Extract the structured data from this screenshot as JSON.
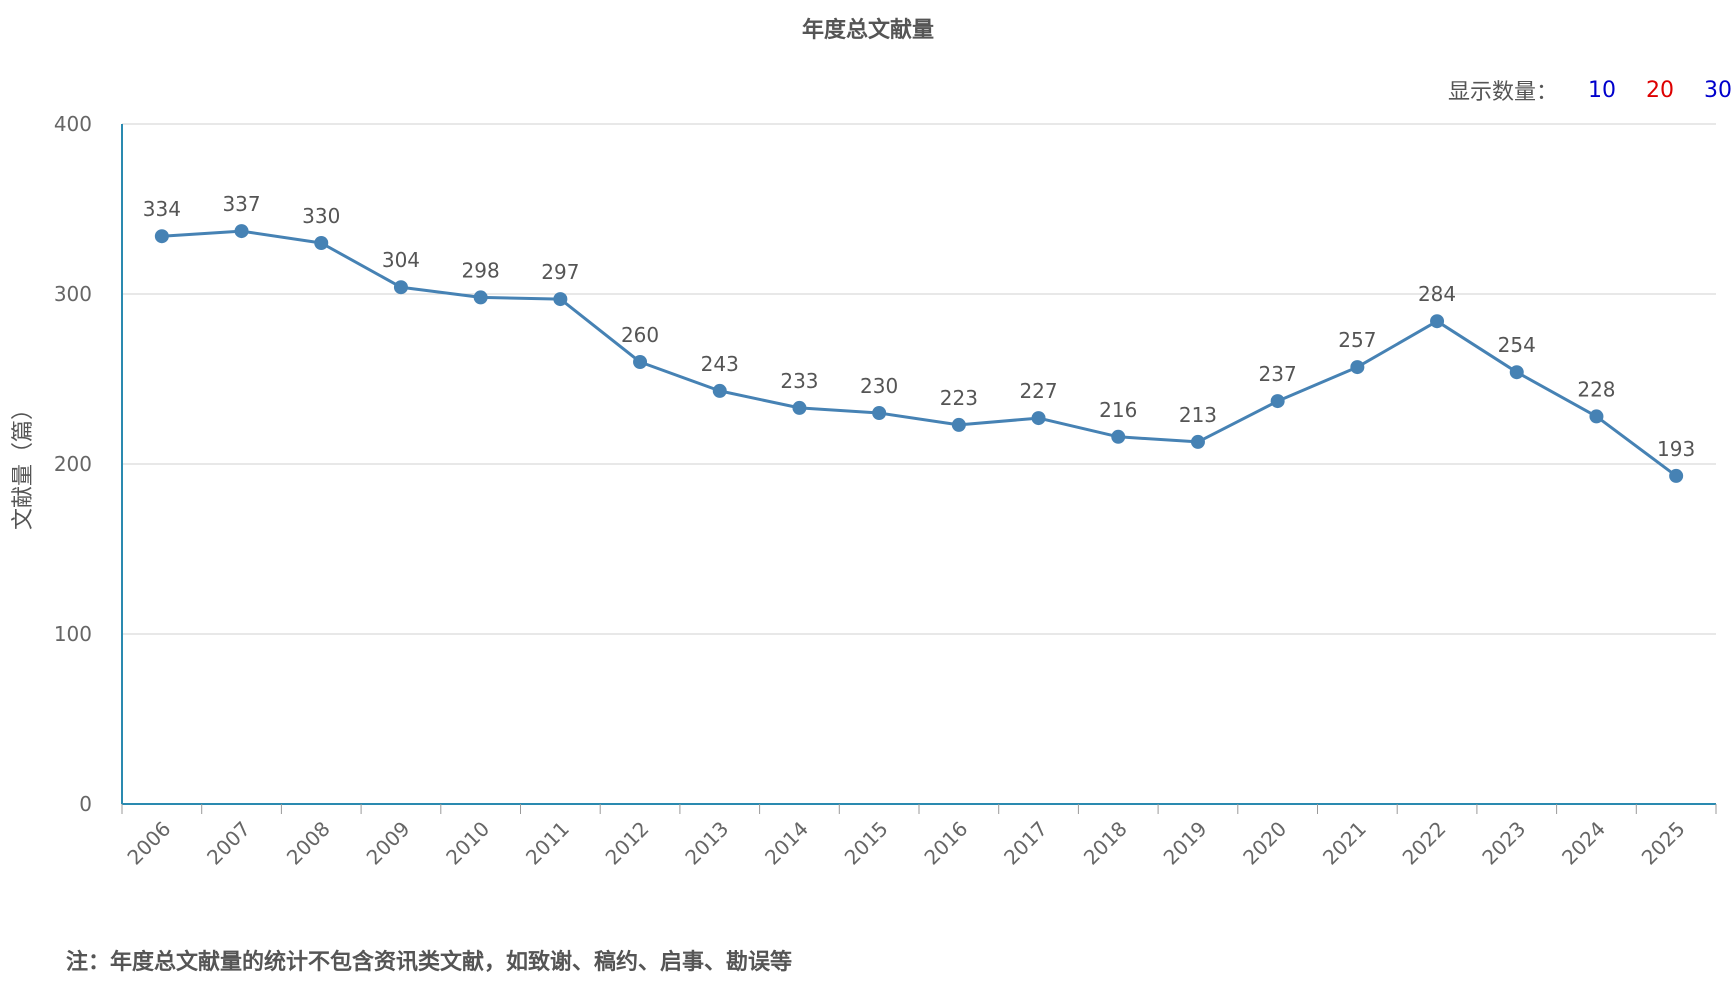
{
  "chart_data": {
    "type": "line",
    "title": "年度总文献量",
    "ylabel": "文献量（篇）",
    "xlabel": "",
    "categories": [
      "2006",
      "2007",
      "2008",
      "2009",
      "2010",
      "2011",
      "2012",
      "2013",
      "2014",
      "2015",
      "2016",
      "2017",
      "2018",
      "2019",
      "2020",
      "2021",
      "2022",
      "2023",
      "2024",
      "2025"
    ],
    "values": [
      334,
      337,
      330,
      304,
      298,
      297,
      260,
      243,
      233,
      230,
      223,
      227,
      216,
      213,
      237,
      257,
      284,
      254,
      228,
      193
    ],
    "ylim": [
      0,
      400
    ],
    "yticks": [
      "0",
      "100",
      "200",
      "300",
      "400"
    ],
    "grid": true,
    "line_color": "#4682b4",
    "axis_color": "#2a8ab0"
  },
  "controls": {
    "label": "显示数量：",
    "options": [
      {
        "label": "10",
        "color": "#0000cc"
      },
      {
        "label": "20",
        "color": "#dd0000"
      },
      {
        "label": "30",
        "color": "#0000cc"
      }
    ]
  },
  "note": "注：年度总文献量的统计不包含资讯类文献，如致谢、稿约、启事、勘误等"
}
